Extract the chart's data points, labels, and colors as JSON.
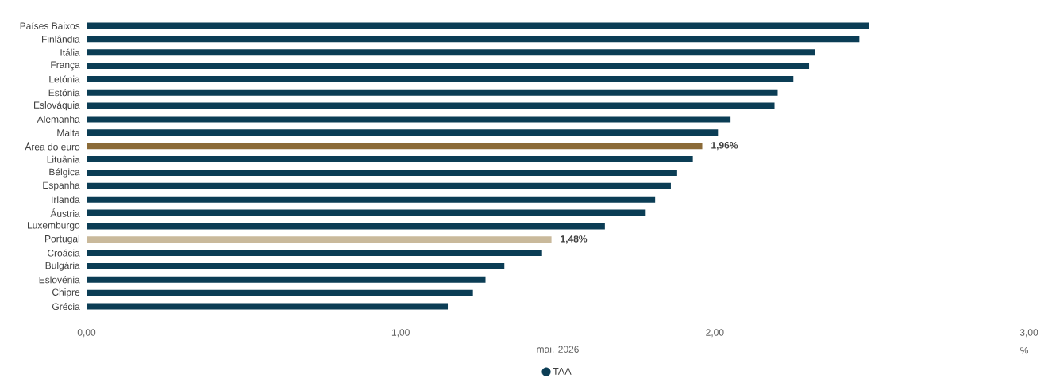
{
  "chart_data": {
    "type": "bar",
    "orientation": "horizontal",
    "categories": [
      "Países Baixos",
      "Finlândia",
      "Itália",
      "França",
      "Letónia",
      "Estónia",
      "Eslováquia",
      "Alemanha",
      "Malta",
      "Área do euro",
      "Lituânia",
      "Bélgica",
      "Espanha",
      "Irlanda",
      "Áustria",
      "Luxemburgo",
      "Portugal",
      "Croácia",
      "Bulgária",
      "Eslovénia",
      "Chipre",
      "Grécia"
    ],
    "series": [
      {
        "name": "TAA",
        "color": "#0b3d55",
        "values": [
          2.49,
          2.46,
          2.32,
          2.3,
          2.25,
          2.2,
          2.19,
          2.05,
          2.01,
          1.96,
          1.93,
          1.88,
          1.86,
          1.81,
          1.78,
          1.65,
          1.48,
          1.45,
          1.33,
          1.27,
          1.23,
          1.15
        ],
        "colors": [
          "#0b3d55",
          "#0b3d55",
          "#0b3d55",
          "#0b3d55",
          "#0b3d55",
          "#0b3d55",
          "#0b3d55",
          "#0b3d55",
          "#0b3d55",
          "#8b6b38",
          "#0b3d55",
          "#0b3d55",
          "#0b3d55",
          "#0b3d55",
          "#0b3d55",
          "#0b3d55",
          "#c9b99b",
          "#0b3d55",
          "#0b3d55",
          "#0b3d55",
          "#0b3d55",
          "#0b3d55"
        ],
        "value_labels": [
          null,
          null,
          null,
          null,
          null,
          null,
          null,
          null,
          null,
          "1,96%",
          null,
          null,
          null,
          null,
          null,
          null,
          "1,48%",
          null,
          null,
          null,
          null,
          null
        ]
      }
    ],
    "xlabel": "mai. 2026",
    "annotations": [
      "%"
    ],
    "xlim": [
      0,
      3
    ],
    "xticks": [
      {
        "value": 0,
        "label": "0,00"
      },
      {
        "value": 1,
        "label": "1,00"
      },
      {
        "value": 2,
        "label": "2,00"
      },
      {
        "value": 3,
        "label": "3,00"
      }
    ],
    "legend": "bottom",
    "grid": false
  }
}
